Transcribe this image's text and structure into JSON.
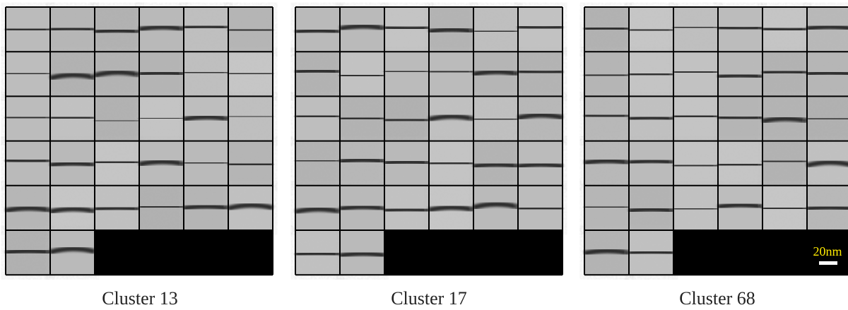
{
  "panels": [
    {
      "label": "Cluster 13"
    },
    {
      "label": "Cluster 17"
    },
    {
      "label": "Cluster 68"
    }
  ],
  "scale_bar": {
    "label": "20nm"
  }
}
